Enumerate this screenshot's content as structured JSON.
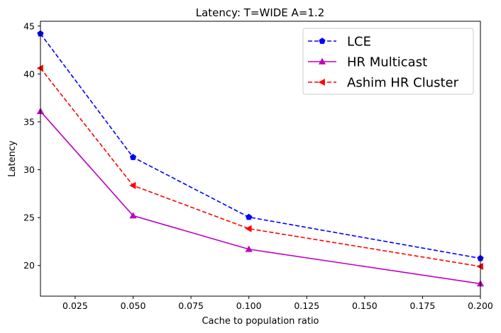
{
  "chart_data": {
    "type": "line",
    "title": "Latency: T=WIDE A=1.2",
    "xlabel": "Cache to population ratio",
    "ylabel": "Latency",
    "xlim": [
      0.01,
      0.2
    ],
    "ylim": [
      16.8,
      45.5
    ],
    "xticks": [
      0.025,
      0.05,
      0.075,
      0.1,
      0.125,
      0.15,
      0.175,
      0.2
    ],
    "xtick_labels": [
      "0.025",
      "0.050",
      "0.075",
      "0.100",
      "0.125",
      "0.150",
      "0.175",
      "0.200"
    ],
    "yticks": [
      20,
      25,
      30,
      35,
      40,
      45
    ],
    "ytick_labels": [
      "20",
      "25",
      "30",
      "35",
      "40",
      "45"
    ],
    "legend_position": "top-right",
    "grid": false,
    "x": [
      0.01,
      0.05,
      0.1,
      0.2
    ],
    "series": [
      {
        "name": "LCE",
        "values": [
          44.2,
          31.3,
          25.05,
          20.75
        ],
        "color": "#0000ff",
        "dash": "dashed",
        "marker": "pentagon"
      },
      {
        "name": "HR Multicast",
        "values": [
          36.1,
          25.2,
          21.7,
          18.1
        ],
        "color": "#bf00bf",
        "dash": "solid",
        "marker": "triangle-up"
      },
      {
        "name": "Ashim HR Cluster",
        "values": [
          40.6,
          28.35,
          23.85,
          19.9
        ],
        "color": "#ff0000",
        "dash": "dashed",
        "marker": "triangle-left"
      }
    ]
  }
}
